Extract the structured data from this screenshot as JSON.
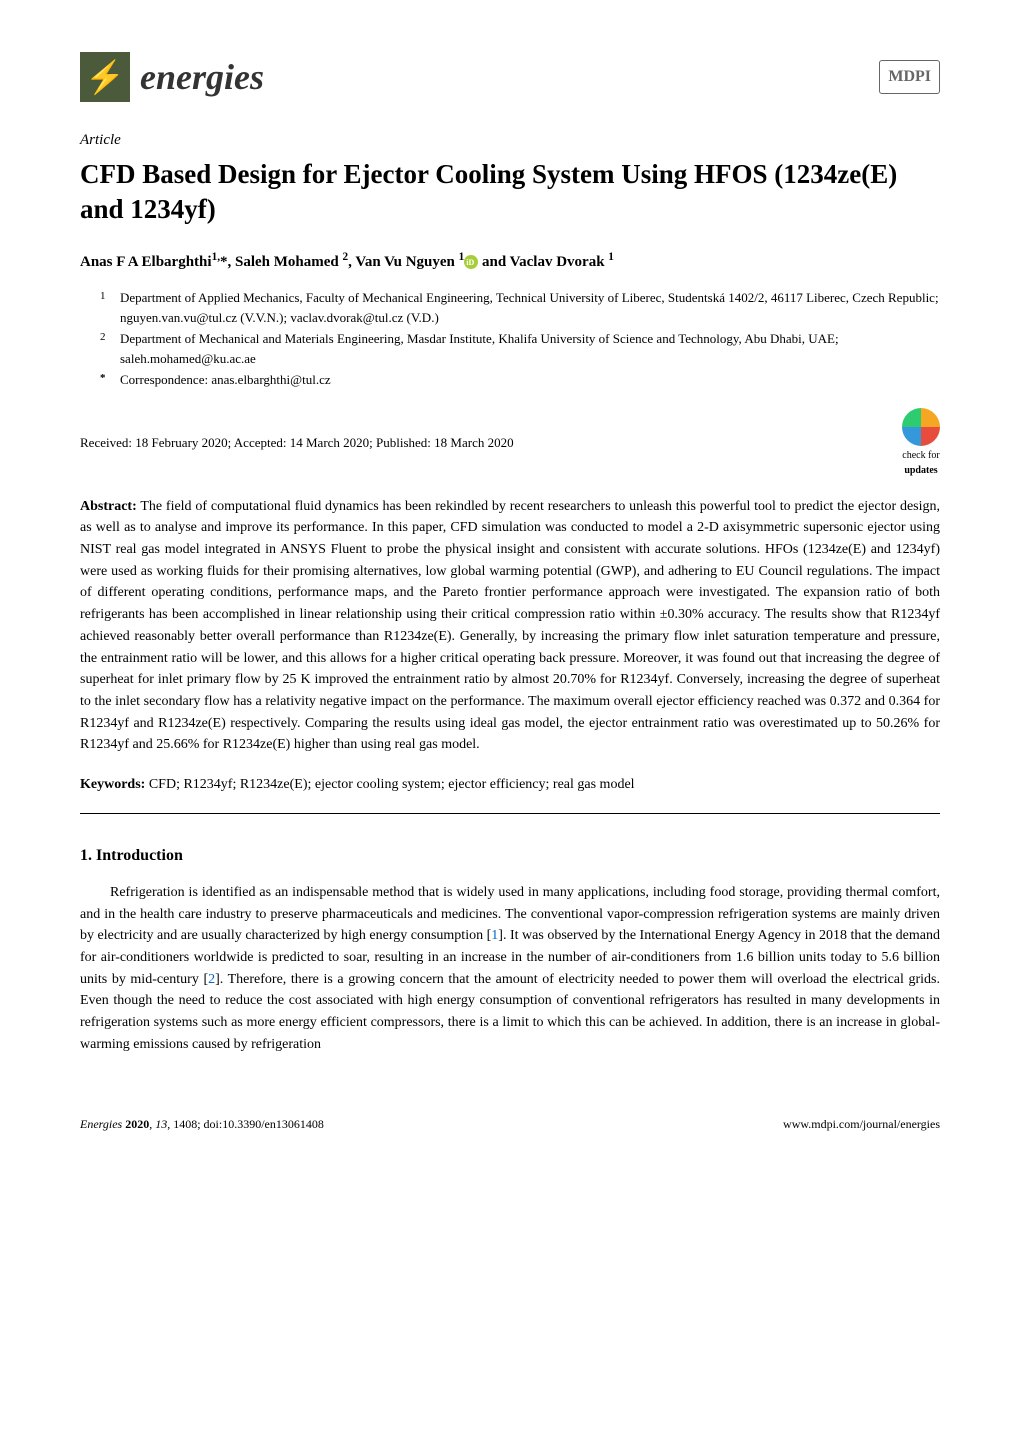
{
  "header": {
    "journal_name": "energies",
    "publisher_logo": "MDPI"
  },
  "article": {
    "type": "Article",
    "title": "CFD Based Design for Ejector Cooling System Using HFOS (1234ze(E) and 1234yf)",
    "authors_line": "Anas F A Elbarghthi",
    "author1_sup": "1,",
    "author1_corr": "*, Saleh Mohamed ",
    "author2_sup": "2",
    "author2_rest": ", Van Vu Nguyen ",
    "author3_sup": "1",
    "author3_rest": " and Vaclav Dvorak ",
    "author4_sup": "1"
  },
  "affiliations": {
    "a1_num": "1",
    "a1_text": "Department of Applied Mechanics, Faculty of Mechanical Engineering, Technical University of Liberec, Studentská 1402/2, 46117 Liberec, Czech Republic; nguyen.van.vu@tul.cz (V.V.N.); vaclav.dvorak@tul.cz (V.D.)",
    "a2_num": "2",
    "a2_text": "Department of Mechanical and Materials Engineering, Masdar Institute, Khalifa University of Science and Technology, Abu Dhabi, UAE; saleh.mohamed@ku.ac.ae",
    "corr_num": "*",
    "corr_text": "Correspondence: anas.elbarghthi@tul.cz"
  },
  "dates": "Received: 18 February 2020; Accepted: 14 March 2020; Published: 18 March 2020",
  "check_updates": {
    "label1": "check for",
    "label2": "updates"
  },
  "abstract": {
    "label": "Abstract:",
    "text": " The field of computational fluid dynamics has been rekindled by recent researchers to unleash this powerful tool to predict the ejector design, as well as to analyse and improve its performance. In this paper, CFD simulation was conducted to model a 2-D axisymmetric supersonic ejector using NIST real gas model integrated in ANSYS Fluent to probe the physical insight and consistent with accurate solutions. HFOs (1234ze(E) and 1234yf) were used as working fluids for their promising alternatives, low global warming potential (GWP), and adhering to EU Council regulations. The impact of different operating conditions, performance maps, and the Pareto frontier performance approach were investigated. The expansion ratio of both refrigerants has been accomplished in linear relationship using their critical compression ratio within ±0.30% accuracy. The results show that R1234yf achieved reasonably better overall performance than R1234ze(E). Generally, by increasing the primary flow inlet saturation temperature and pressure, the entrainment ratio will be lower, and this allows for a higher critical operating back pressure. Moreover, it was found out that increasing the degree of superheat for inlet primary flow by 25 K improved the entrainment ratio by almost 20.70% for R1234yf. Conversely, increasing the degree of superheat to the inlet secondary flow has a relativity negative impact on the performance. The maximum overall ejector efficiency reached was 0.372 and 0.364 for R1234yf and R1234ze(E) respectively. Comparing the results using ideal gas model, the ejector entrainment ratio was overestimated up to 50.26% for R1234yf and 25.66% for R1234ze(E) higher than using real gas model."
  },
  "keywords": {
    "label": "Keywords:",
    "text": " CFD; R1234yf; R1234ze(E); ejector cooling system; ejector efficiency; real gas model"
  },
  "section1": {
    "heading": "1. Introduction",
    "para1_a": "Refrigeration is identified as an indispensable method that is widely used in many applications, including food storage, providing thermal comfort, and in the health care industry to preserve pharmaceuticals and medicines. The conventional vapor-compression refrigeration systems are mainly driven by electricity and are usually characterized by high energy consumption [",
    "ref1": "1",
    "para1_b": "]. It was observed by the International Energy Agency in 2018 that the demand for air-conditioners worldwide is predicted to soar, resulting in an increase in the number of air-conditioners from 1.6 billion units today to 5.6 billion units by mid-century [",
    "ref2": "2",
    "para1_c": "]. Therefore, there is a growing concern that the amount of electricity needed to power them will overload the electrical grids. Even though the need to reduce the cost associated with high energy consumption of conventional refrigerators has resulted in many developments in refrigeration systems such as more energy efficient compressors, there is a limit to which this can be achieved. In addition, there is an increase in global-warming emissions caused by refrigeration"
  },
  "footer": {
    "left": "Energies 2020, 13, 1408; doi:10.3390/en13061408",
    "right": "www.mdpi.com/journal/energies"
  }
}
